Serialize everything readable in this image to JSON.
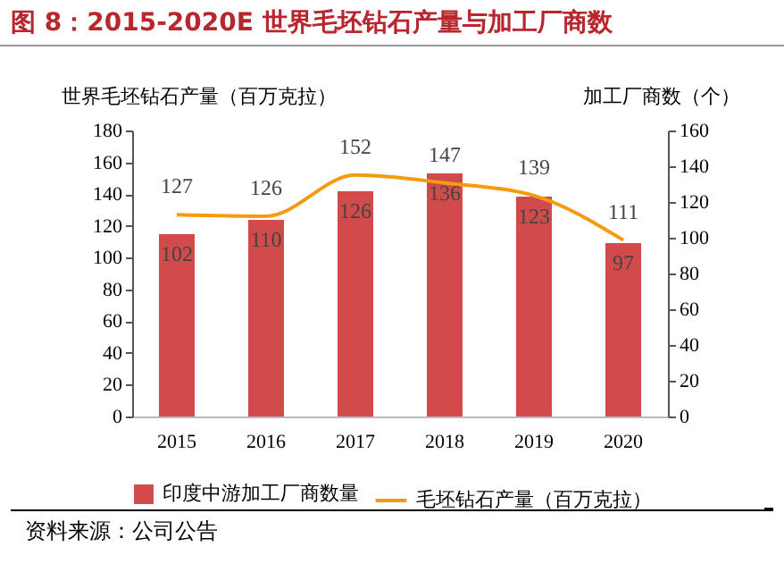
{
  "chart_data": {
    "type": "bar",
    "title": "图 8：2015-2020E 世界毛坯钻石产量与加工厂商数",
    "ylabel": "世界毛坯钻石产量（百万克拉）",
    "y2label": "加工厂商数（个）",
    "annotations": [
      "资料来源：公司公告"
    ],
    "categories": [
      "2015",
      "2016",
      "2017",
      "2018",
      "2019",
      "2020"
    ],
    "series": [
      {
        "name": "印度中游加工厂商数量",
        "axis": "y2",
        "color": "#d14b4b",
        "values": [
          102,
          110,
          126,
          136,
          123,
          97
        ]
      },
      {
        "name": "毛坯钻石产量（百万克拉）",
        "type": "line",
        "axis": "y",
        "color": "#f59b12",
        "values": [
          127,
          126,
          152,
          147,
          139,
          111
        ]
      }
    ],
    "ylim": [
      0,
      180
    ],
    "yticks": [
      0,
      20,
      40,
      60,
      80,
      100,
      120,
      140,
      160,
      180
    ],
    "y2lim": [
      0,
      160
    ],
    "y2ticks": [
      0,
      20,
      40,
      60,
      80,
      100,
      120,
      140,
      160
    ],
    "data_labels": true,
    "grid": false,
    "legend": "bottom",
    "marker": "none",
    "line_style": "solid"
  }
}
